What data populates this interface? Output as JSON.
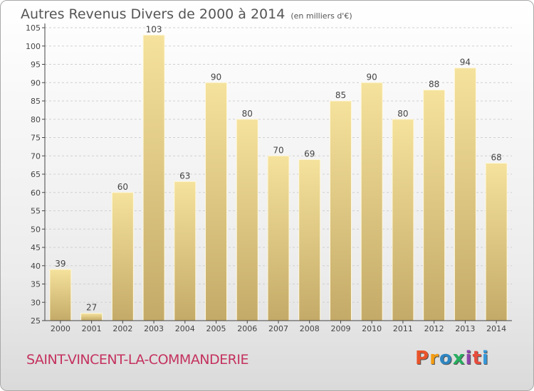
{
  "title": "Autres Revenus Divers de 2000 à 2014",
  "subtitle": "(en milliers d'€)",
  "location": "SAINT-VINCENT-LA-COMMANDERIE",
  "brand": "Proxiti",
  "colors": {
    "bar_top": "#f5e29c",
    "bar_bottom": "#c4aa68",
    "grid": "#d0d0d0",
    "axis": "#444444",
    "location_text": "#c4325f",
    "brand_letters": [
      "#e8542a",
      "#f39c12",
      "#2e86c1",
      "#27ae60",
      "#8e44ad",
      "#e74c3c",
      "#3498db"
    ]
  },
  "chart_data": {
    "type": "bar",
    "title": "Autres Revenus Divers de 2000 à 2014",
    "subtitle": "(en milliers d'€)",
    "xlabel": "",
    "ylabel": "",
    "categories": [
      "2000",
      "2001",
      "2002",
      "2003",
      "2004",
      "2005",
      "2006",
      "2007",
      "2008",
      "2009",
      "2010",
      "2011",
      "2012",
      "2013",
      "2014"
    ],
    "values": [
      39,
      27,
      60,
      103,
      63,
      90,
      80,
      70,
      69,
      85,
      90,
      80,
      88,
      94,
      68
    ],
    "ylim": [
      25,
      105
    ],
    "yticks": [
      25,
      30,
      35,
      40,
      45,
      50,
      55,
      60,
      65,
      70,
      75,
      80,
      85,
      90,
      95,
      100,
      105
    ],
    "grid": "horizontal dashed",
    "legend": "none"
  }
}
